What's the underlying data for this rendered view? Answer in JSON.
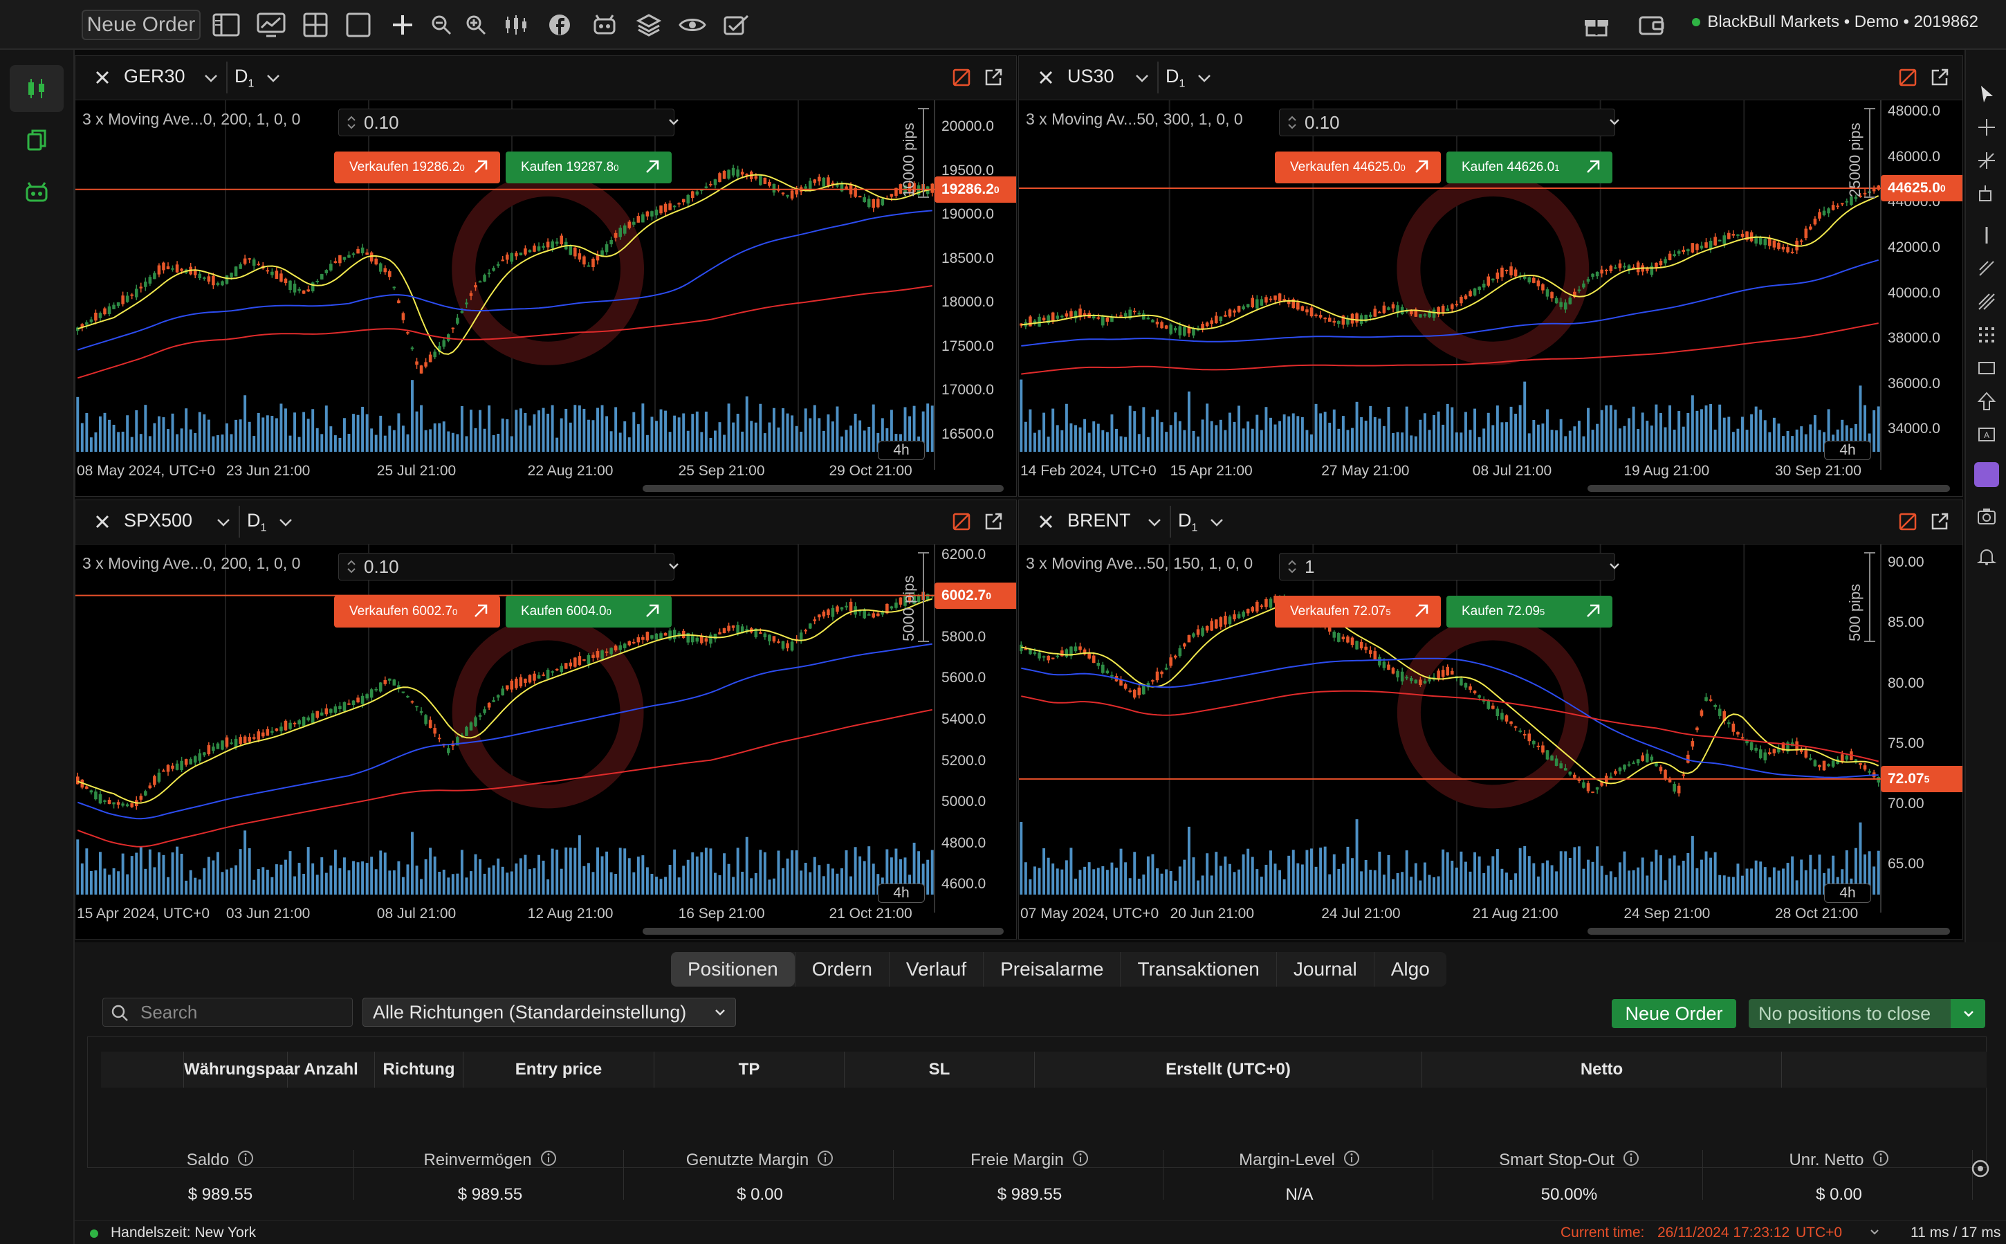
{
  "topbar": {
    "new_order": "Neue Order",
    "account": "BlackBull Markets • Demo • 2019862",
    "icons": [
      "sidebar-layout-icon",
      "monitor-chart-icon",
      "grid-layout-icon",
      "single-layout-icon",
      "crosshair-plus-icon",
      "zoom-out-icon",
      "zoom-in-icon",
      "indicators-icon",
      "facebook-icon",
      "bot-icon",
      "layers-icon",
      "eye-icon",
      "settings-check-icon"
    ]
  },
  "charts": [
    {
      "symbol": "GER30",
      "timeframe": "D",
      "timeframe_sub": "1",
      "indicator": "3 x Moving Ave...0, 200, 1, 0, 0",
      "qty": "0.10",
      "sell": "Verkaufen 19286.2",
      "sell_sup": "0",
      "buy": "Kaufen 19287.8",
      "buy_sup": "0",
      "price": "19286.2",
      "price_sup": "0",
      "pips": "10000 pips",
      "tf": "4h",
      "yticks": [
        "20000.0",
        "19500.0",
        "19000.0",
        "18500.0",
        "18000.0",
        "17500.0",
        "17000.0",
        "16500.0"
      ],
      "xticks": [
        "08 May 2024, UTC+0",
        "23 Jun 21:00",
        "25 Jul 21:00",
        "22 Aug 21:00",
        "25 Sep 21:00",
        "29 Oct 21:00"
      ],
      "ylim": [
        16300,
        20300
      ],
      "last": 19286.2,
      "series": [
        17700,
        17900,
        18100,
        18400,
        18350,
        18200,
        18500,
        18300,
        18100,
        18450,
        18600,
        18300,
        17200,
        17600,
        18200,
        18500,
        18600,
        18700,
        18400,
        18800,
        19000,
        19100,
        19300,
        19500,
        19400,
        19200,
        19400,
        19300,
        19100,
        19300,
        19286
      ]
    },
    {
      "symbol": "US30",
      "timeframe": "D",
      "timeframe_sub": "1",
      "indicator": "3 x Moving Av...50, 300, 1, 0, 0",
      "qty": "0.10",
      "sell": "Verkaufen 44625.0",
      "sell_sup": "0",
      "buy": "Kaufen 44626.0",
      "buy_sup": "1",
      "price": "44625.0",
      "price_sup": "0",
      "pips": "25000 pips",
      "tf": "4h",
      "yticks": [
        "48000.0",
        "46000.0",
        "44000.0",
        "42000.0",
        "40000.0",
        "38000.0",
        "36000.0",
        "34000.0"
      ],
      "xticks": [
        "14 Feb 2024, UTC+0",
        "15 Apr 21:00",
        "27 May 21:00",
        "08 Jul 21:00",
        "19 Aug 21:00",
        "30 Sep 21:00"
      ],
      "ylim": [
        33000,
        48500
      ],
      "last": 44625,
      "series": [
        38600,
        38900,
        39100,
        38800,
        39200,
        38500,
        38300,
        38900,
        39500,
        39800,
        39200,
        38700,
        38900,
        39400,
        39000,
        39300,
        40200,
        41000,
        40500,
        39400,
        40800,
        41200,
        41000,
        41800,
        42100,
        42600,
        42300,
        41800,
        43500,
        44100,
        44625
      ]
    },
    {
      "symbol": "SPX500",
      "timeframe": "D",
      "timeframe_sub": "1",
      "indicator": "3 x Moving Ave...0, 200, 1, 0, 0",
      "qty": "0.10",
      "sell": "Verkaufen 6002.7",
      "sell_sup": "0",
      "buy": "Kaufen 6004.0",
      "buy_sup": "0",
      "price": "6002.7",
      "price_sup": "0",
      "pips": "5000 pips",
      "tf": "4h",
      "yticks": [
        "6200.0",
        "6000.0",
        "5800.0",
        "5600.0",
        "5400.0",
        "5200.0",
        "5000.0",
        "4800.0",
        "4600.0"
      ],
      "xticks": [
        "15 Apr 2024, UTC+0",
        "03 Jun 21:00",
        "08 Jul 21:00",
        "12 Aug 21:00",
        "16 Sep 21:00",
        "21 Oct 21:00"
      ],
      "ylim": [
        4550,
        6250
      ],
      "last": 6002.7,
      "series": [
        5100,
        5000,
        4980,
        5150,
        5200,
        5280,
        5300,
        5350,
        5400,
        5450,
        5500,
        5600,
        5450,
        5250,
        5400,
        5550,
        5600,
        5650,
        5700,
        5750,
        5800,
        5820,
        5780,
        5850,
        5820,
        5750,
        5900,
        5950,
        5900,
        5980,
        6002.7
      ]
    },
    {
      "symbol": "BRENT",
      "timeframe": "D",
      "timeframe_sub": "1",
      "indicator": "3 x Moving Ave...50, 150, 1, 0, 0",
      "qty": "1",
      "sell": "Verkaufen 72.07",
      "sell_sup": "5",
      "buy": "Kaufen 72.09",
      "buy_sup": "5",
      "price": "72.07",
      "price_sup": "5",
      "pips": "500 pips",
      "tf": "4h",
      "yticks": [
        "90.00",
        "85.00",
        "80.00",
        "75.00",
        "70.00",
        "65.00"
      ],
      "xticks": [
        "07 May 2024, UTC+0",
        "20 Jun 21:00",
        "24 Jul 21:00",
        "21 Aug 21:00",
        "24 Sep 21:00",
        "28 Oct 21:00"
      ],
      "ylim": [
        62500,
        91500
      ],
      "last": 72.075,
      "series": [
        83,
        82,
        83,
        81,
        79,
        81,
        84,
        85,
        86,
        87,
        86,
        84,
        83,
        81,
        80,
        81,
        79,
        77,
        75,
        73,
        71,
        73,
        74,
        71,
        79,
        76,
        74,
        75,
        73,
        74,
        72.07
      ]
    }
  ],
  "bottom": {
    "tabs": [
      "Positionen",
      "Ordern",
      "Verlauf",
      "Preisalarme",
      "Transaktionen",
      "Journal",
      "Algo"
    ],
    "search_placeholder": "Search",
    "direction": "Alle Richtungen (Standardeinstellung)",
    "new_order": "Neue Order",
    "no_positions": "No positions to close",
    "columns": [
      "Währungspaar",
      "Anzahl",
      "Richtung",
      "Entry price",
      "TP",
      "SL",
      "Erstellt (UTC+0)",
      "Netto"
    ],
    "stats": [
      {
        "label": "Saldo",
        "value": "$ 989.55"
      },
      {
        "label": "Reinvermögen",
        "value": "$ 989.55"
      },
      {
        "label": "Genutzte Margin",
        "value": "$ 0.00"
      },
      {
        "label": "Freie Margin",
        "value": "$ 989.55"
      },
      {
        "label": "Margin-Level",
        "value": "N/A"
      },
      {
        "label": "Smart Stop-Out",
        "value": "50.00%"
      },
      {
        "label": "Unr. Netto",
        "value": "$ 0.00"
      }
    ]
  },
  "status": {
    "session": "Handelszeit: New York",
    "current_time_label": "Current time:",
    "current_time": "26/11/2024 17:23:12",
    "tz": "UTC+0",
    "latency": "11 ms / 17 ms"
  },
  "colors": {
    "sell": "#e8502a",
    "buy": "#1f8a3c",
    "ma_fast": "#f2e94e",
    "ma_mid": "#2c4cf0",
    "ma_slow": "#e02b2b",
    "candle_up": "#2e8b45",
    "candle_down": "#e8572a",
    "volume": "#5aa9e6"
  }
}
